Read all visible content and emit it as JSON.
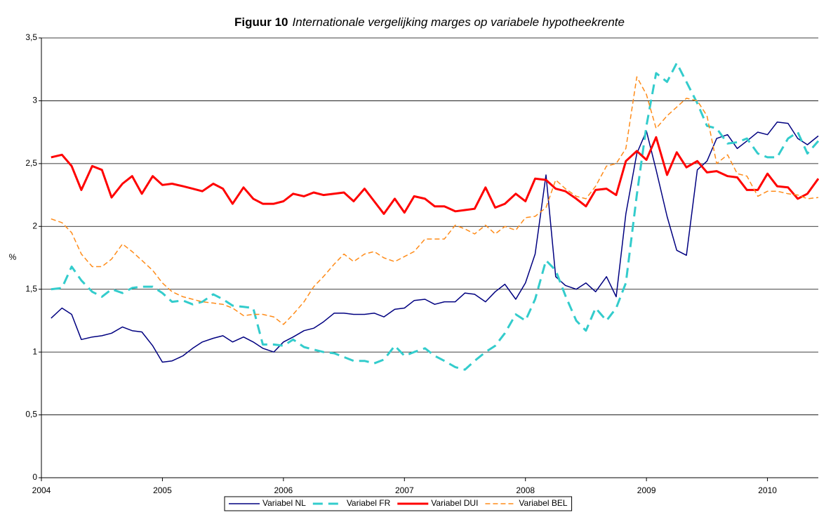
{
  "chart_data": {
    "type": "line",
    "title": "Figuur 10",
    "subtitle": "Internationale vergelijking marges op variabele hypotheekrente",
    "y_label": "%",
    "x": [
      2004.08,
      2004.17,
      2004.25,
      2004.33,
      2004.42,
      2004.5,
      2004.58,
      2004.67,
      2004.75,
      2004.83,
      2004.92,
      2005.0,
      2005.08,
      2005.17,
      2005.25,
      2005.33,
      2005.42,
      2005.5,
      2005.58,
      2005.67,
      2005.75,
      2005.83,
      2005.92,
      2006.0,
      2006.08,
      2006.17,
      2006.25,
      2006.33,
      2006.42,
      2006.5,
      2006.58,
      2006.67,
      2006.75,
      2006.83,
      2006.92,
      2007.0,
      2007.08,
      2007.17,
      2007.25,
      2007.33,
      2007.42,
      2007.5,
      2007.58,
      2007.67,
      2007.75,
      2007.83,
      2007.92,
      2008.0,
      2008.08,
      2008.17,
      2008.25,
      2008.33,
      2008.42,
      2008.5,
      2008.58,
      2008.67,
      2008.75,
      2008.83,
      2008.92,
      2009.0,
      2009.08,
      2009.17,
      2009.25,
      2009.33,
      2009.42,
      2009.5,
      2009.58,
      2009.67,
      2009.75,
      2009.83,
      2009.92,
      2010.0,
      2010.08,
      2010.17,
      2010.25,
      2010.33,
      2010.42
    ],
    "series": [
      {
        "name": "Variabel NL",
        "color": "#000080",
        "width": 1.5,
        "dash": "solid",
        "values": [
          1.27,
          1.35,
          1.3,
          1.1,
          1.12,
          1.13,
          1.15,
          1.2,
          1.17,
          1.16,
          1.05,
          0.92,
          0.93,
          0.97,
          1.03,
          1.08,
          1.11,
          1.13,
          1.08,
          1.12,
          1.08,
          1.03,
          1.0,
          1.08,
          1.12,
          1.17,
          1.19,
          1.24,
          1.31,
          1.31,
          1.3,
          1.3,
          1.31,
          1.28,
          1.34,
          1.35,
          1.41,
          1.42,
          1.38,
          1.4,
          1.4,
          1.47,
          1.46,
          1.4,
          1.48,
          1.54,
          1.42,
          1.55,
          1.78,
          2.41,
          1.6,
          1.53,
          1.5,
          1.55,
          1.48,
          1.6,
          1.44,
          2.1,
          2.58,
          2.76,
          2.45,
          2.08,
          1.81,
          1.77,
          2.45,
          2.52,
          2.7,
          2.73,
          2.62,
          2.68,
          2.75,
          2.73,
          2.83,
          2.82,
          2.7,
          2.65,
          2.72
        ]
      },
      {
        "name": "Variabel FR",
        "color": "#33CCCC",
        "width": 3,
        "dash": "dashed",
        "values": [
          1.5,
          1.51,
          1.68,
          1.57,
          1.48,
          1.44,
          1.5,
          1.47,
          1.51,
          1.52,
          1.52,
          1.47,
          1.4,
          1.41,
          1.38,
          1.4,
          1.46,
          1.42,
          1.37,
          1.36,
          1.35,
          1.06,
          1.06,
          1.05,
          1.1,
          1.04,
          1.02,
          1.0,
          0.99,
          0.96,
          0.93,
          0.93,
          0.91,
          0.94,
          1.05,
          0.97,
          1.0,
          1.03,
          0.97,
          0.93,
          0.88,
          0.86,
          0.93,
          1.0,
          1.05,
          1.15,
          1.3,
          1.25,
          1.42,
          1.73,
          1.65,
          1.45,
          1.25,
          1.17,
          1.35,
          1.25,
          1.35,
          1.55,
          2.25,
          2.8,
          3.22,
          3.15,
          3.3,
          3.15,
          2.98,
          2.8,
          2.78,
          2.66,
          2.67,
          2.7,
          2.58,
          2.55,
          2.55,
          2.7,
          2.75,
          2.58,
          2.68
        ]
      },
      {
        "name": "Variabel DUI",
        "color": "#FF0000",
        "width": 3,
        "dash": "solid",
        "values": [
          2.55,
          2.57,
          2.48,
          2.29,
          2.48,
          2.45,
          2.23,
          2.34,
          2.4,
          2.26,
          2.4,
          2.33,
          2.34,
          2.32,
          2.3,
          2.28,
          2.34,
          2.3,
          2.18,
          2.31,
          2.22,
          2.18,
          2.18,
          2.2,
          2.26,
          2.24,
          2.27,
          2.25,
          2.26,
          2.27,
          2.2,
          2.3,
          2.2,
          2.1,
          2.22,
          2.11,
          2.24,
          2.22,
          2.16,
          2.16,
          2.12,
          2.13,
          2.14,
          2.31,
          2.15,
          2.18,
          2.26,
          2.2,
          2.38,
          2.37,
          2.3,
          2.28,
          2.22,
          2.16,
          2.29,
          2.3,
          2.25,
          2.52,
          2.6,
          2.53,
          2.71,
          2.41,
          2.59,
          2.47,
          2.52,
          2.43,
          2.44,
          2.4,
          2.39,
          2.29,
          2.29,
          2.42,
          2.32,
          2.31,
          2.22,
          2.26,
          2.38
        ]
      },
      {
        "name": "Variabel BEL",
        "color": "#FF8C1A",
        "width": 1.5,
        "dash": "dashed",
        "values": [
          2.06,
          2.03,
          1.95,
          1.78,
          1.68,
          1.68,
          1.74,
          1.86,
          1.8,
          1.73,
          1.65,
          1.55,
          1.48,
          1.44,
          1.42,
          1.4,
          1.39,
          1.38,
          1.35,
          1.29,
          1.3,
          1.3,
          1.28,
          1.22,
          1.3,
          1.4,
          1.52,
          1.6,
          1.7,
          1.78,
          1.72,
          1.78,
          1.8,
          1.75,
          1.72,
          1.76,
          1.8,
          1.9,
          1.9,
          1.9,
          2.01,
          1.98,
          1.94,
          2.01,
          1.94,
          2.0,
          1.97,
          2.07,
          2.08,
          2.15,
          2.37,
          2.3,
          2.24,
          2.22,
          2.32,
          2.48,
          2.5,
          2.62,
          3.19,
          3.05,
          2.78,
          2.88,
          2.95,
          3.02,
          3.0,
          2.88,
          2.5,
          2.57,
          2.42,
          2.4,
          2.24,
          2.28,
          2.28,
          2.26,
          2.25,
          2.22,
          2.23
        ]
      }
    ],
    "xlim": [
      2004,
      2010.42
    ],
    "xticks": [
      2004,
      2005,
      2006,
      2007,
      2008,
      2009,
      2010
    ],
    "ylim": [
      0,
      3.5
    ],
    "yticks": [
      0,
      {
        "value": 0.5,
        "label": "0,5"
      },
      1,
      {
        "value": 1.5,
        "label": "1,5"
      },
      2,
      {
        "value": 2.5,
        "label": "2,5"
      },
      3,
      {
        "value": 3.5,
        "label": "3,5"
      }
    ],
    "grid": true,
    "legend": "bottom"
  }
}
